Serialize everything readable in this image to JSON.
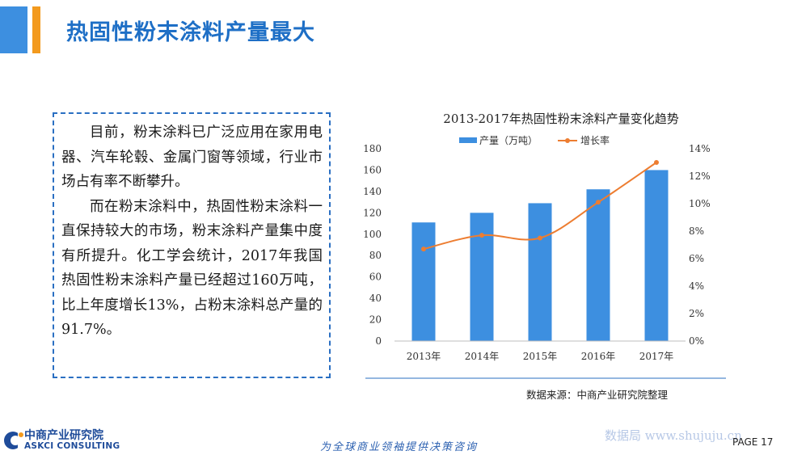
{
  "header": {
    "title": "热固性粉末涂料产量最大"
  },
  "body_text": {
    "para1": "目前，粉末涂料已广泛应用在家用电器、汽车轮毂、金属门窗等领域，行业市场占有率不断攀升。",
    "para2": "而在粉末涂料中，热固性粉末涂料一直保持较大的市场，粉末涂料产量集中度有所提升。化工学会统计，2017年我国热固性粉末涂料产量已经超过160万吨，比上年度增长13%，占粉末涂料总产量的91.7%。"
  },
  "chart_data": {
    "type": "bar+line",
    "title": "2013-2017年热固性粉末涂料产量变化趋势",
    "categories": [
      "2013年",
      "2014年",
      "2015年",
      "2016年",
      "2017年"
    ],
    "series": [
      {
        "name": "产量（万吨）",
        "type": "bar",
        "axis": "left",
        "values": [
          111,
          120,
          129,
          142,
          160
        ]
      },
      {
        "name": "增长率",
        "type": "line",
        "axis": "right",
        "values": [
          6.7,
          7.7,
          7.5,
          10.1,
          13.0
        ]
      }
    ],
    "y_left": {
      "min": 0,
      "max": 180,
      "step": 20,
      "ticks": [
        "0",
        "20",
        "40",
        "60",
        "80",
        "100",
        "120",
        "140",
        "160",
        "180"
      ]
    },
    "y_right": {
      "min": 0,
      "max": 14,
      "step": 2,
      "ticks": [
        "0%",
        "2%",
        "4%",
        "6%",
        "8%",
        "10%",
        "12%",
        "14%"
      ]
    },
    "legend_position": "top",
    "colors": {
      "bar": "#3d8fe0",
      "line": "#ed7d31"
    },
    "grid": false
  },
  "source": "数据来源：中商产业研究院整理",
  "footer": {
    "logo_cn": "中商产业研究院",
    "logo_en": "ASKCI CONSULTING",
    "slogan": "为全球商业领袖提供决策咨询",
    "watermark": "数据局 www.shujuju.cn",
    "page": "PAGE 17"
  },
  "colors": {
    "title": "#1e6fc6",
    "accent_blue": "#3d8fe0",
    "accent_orange": "#f39a1e",
    "border": "#2a6fc2"
  }
}
